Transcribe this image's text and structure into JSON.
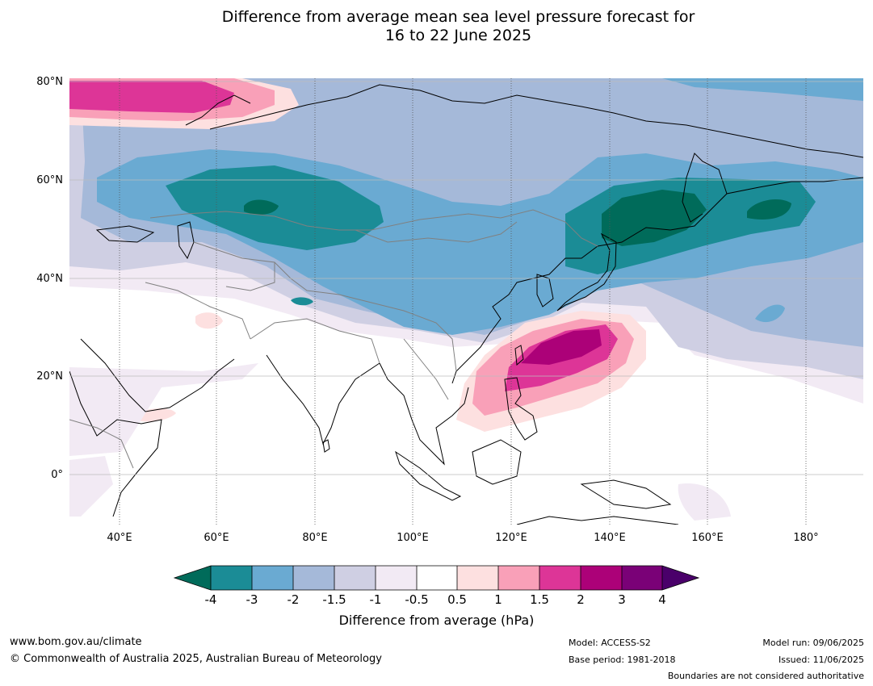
{
  "title": {
    "line1": "Difference from average mean sea level pressure forecast for",
    "line2": "16 to 22 June 2025"
  },
  "map": {
    "lat_labels": [
      "80°N",
      "60°N",
      "40°N",
      "20°N",
      "0°"
    ],
    "lon_labels": [
      "40°E",
      "60°E",
      "80°E",
      "100°E",
      "120°E",
      "140°E",
      "160°E",
      "180°"
    ]
  },
  "colorbar": {
    "ticks": [
      "-4",
      "-3",
      "-2",
      "-1.5",
      "-1",
      "-0.5",
      "0.5",
      "1",
      "1.5",
      "2",
      "3",
      "4"
    ],
    "colors": {
      "lt_-4": "#006b5a",
      "-4_-3": "#1b8c96",
      "-3_-2": "#6aaad2",
      "-2_-1.5": "#a5b9d9",
      "-1.5_-1": "#cfcfe3",
      "-1_-0.5": "#f2eaf4",
      "-0.5_0.5": "#ffffff",
      "0.5_1": "#fde0e0",
      "1_1.5": "#f9a0b8",
      "1.5_2": "#dd3597",
      "2_3": "#ac0178",
      "3_4": "#7a0177",
      "gt_4": "#4a006a"
    },
    "label": "Difference from average (hPa)"
  },
  "footer": {
    "website": "www.bom.gov.au/climate",
    "copyright": "© Commonwealth of Australia 2025, Australian Bureau of Meteorology",
    "model": "Model: ACCESS-S2",
    "base_period": "Base period: 1981-2018",
    "model_run": "Model run: 09/06/2025",
    "issued": "Issued: 11/06/2025",
    "disclaimer": "Boundaries are not considered authoritative"
  }
}
